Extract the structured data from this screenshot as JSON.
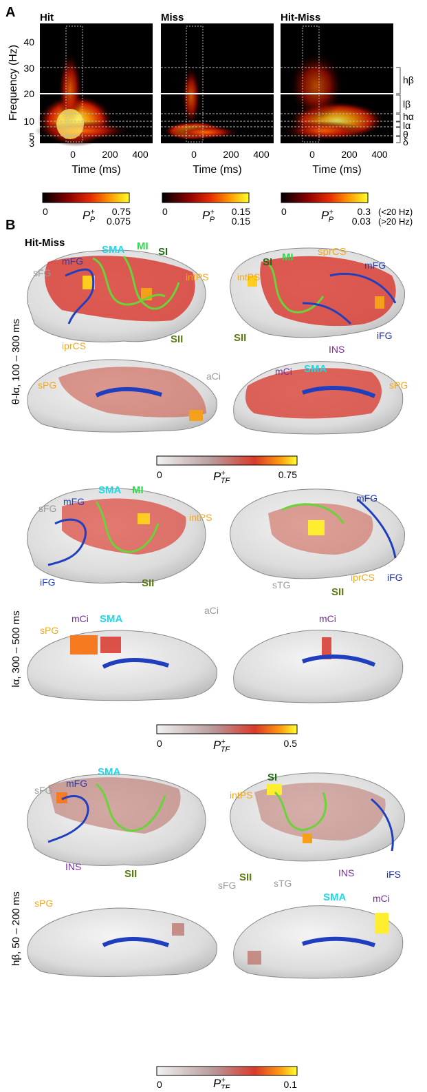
{
  "colors": {
    "sensory_green": "#6ad33a",
    "frontal_blue": "#1f3fbf",
    "sma_cyan": "#1fd7e6",
    "mi_green": "#2fd84a",
    "si_darkgreen": "#1f6b12",
    "sii_olive": "#5a7a12",
    "parietal_orange": "#f5a81a",
    "gray_label": "#9a9a9a",
    "purple": "#7a2c9a",
    "navy": "#1a2a9a"
  },
  "panel_a": {
    "letter": "A",
    "titles": [
      "Hit",
      "Miss",
      "Hit-Miss"
    ],
    "ylabel": "Frequency (Hz)",
    "xlabel": "Time (ms)",
    "yticks": [
      "40",
      "30",
      "20",
      "10",
      "5",
      "3"
    ],
    "xticks": [
      "0",
      "200",
      "400"
    ],
    "band_labels": [
      "hβ",
      "lβ",
      "hα",
      "lα",
      "θ",
      "δ"
    ],
    "colorbars": [
      {
        "min": "0",
        "max_hi": "0.75",
        "max_lo": "0.075"
      },
      {
        "min": "0",
        "max_hi": "0.15",
        "max_lo": "0.15"
      },
      {
        "min": "0",
        "max_hi": "0.3",
        "max_lo": "0.03"
      }
    ],
    "cb_label": "P",
    "cb_sup": "+",
    "cb_sub": "P",
    "ranges": [
      "(<20 Hz)",
      "(>20 Hz)"
    ]
  },
  "panel_b": {
    "letter": "B",
    "title": "Hit-Miss",
    "rows": [
      {
        "side_label": "θ-lα, 100 – 300 ms",
        "cb_min": "0",
        "cb_max": "0.75",
        "lat_left": [
          "sFG",
          "mFG",
          "SMA",
          "MI",
          "SI",
          "intPS",
          "iprCS",
          "SII"
        ],
        "lat_right": [
          "SI",
          "MI",
          "sprCS",
          "mFG",
          "intPS",
          "SII",
          "iFG",
          "INS"
        ],
        "med_left": [
          "sPG",
          "aCi"
        ],
        "med_right": [
          "mCi",
          "SMA",
          "sPG"
        ]
      },
      {
        "side_label": "lα, 300 – 500 ms",
        "cb_min": "0",
        "cb_max": "0.5",
        "lat_left": [
          "sFG",
          "mFG",
          "SMA",
          "MI",
          "intPS",
          "iFG",
          "SII"
        ],
        "lat_right": [
          "mFG",
          "sTG",
          "iprCS",
          "iFG",
          "SII"
        ],
        "med_left": [
          "sPG",
          "mCi",
          "SMA",
          "aCi"
        ],
        "med_right": [
          "mCi"
        ]
      },
      {
        "side_label": "hβ, 50 – 200 ms",
        "cb_min": "0",
        "cb_max": "0.1",
        "lat_left": [
          "sFG",
          "mFG",
          "SMA",
          "INS",
          "SII"
        ],
        "lat_right": [
          "SI",
          "intPS",
          "SII",
          "sTG",
          "INS",
          "iFS"
        ],
        "med_left": [
          "sPG",
          "sFG"
        ],
        "med_right": [
          "SMA",
          "mCi"
        ]
      }
    ],
    "cb_label": "P",
    "cb_sup": "+",
    "cb_sub": "TF"
  }
}
